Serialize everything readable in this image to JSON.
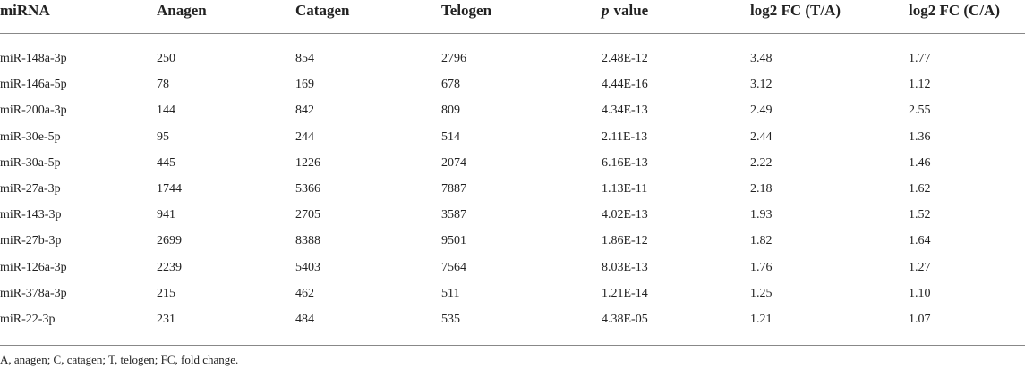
{
  "table": {
    "header": [
      "miRNA",
      "Anagen",
      "Catagen",
      "Telogen",
      [
        "p",
        "value"
      ],
      "log2 FC (T/A)",
      "log2 FC (C/A)"
    ],
    "rows": [
      [
        "miR-148a-3p",
        "250",
        "854",
        "2796",
        "2.48E-12",
        "3.48",
        "1.77"
      ],
      [
        "miR-146a-5p",
        "78",
        "169",
        "678",
        "4.44E-16",
        "3.12",
        "1.12"
      ],
      [
        "miR-200a-3p",
        "144",
        "842",
        "809",
        "4.34E-13",
        "2.49",
        "2.55"
      ],
      [
        "miR-30e-5p",
        "95",
        "244",
        "514",
        "2.11E-13",
        "2.44",
        "1.36"
      ],
      [
        "miR-30a-5p",
        "445",
        "1226",
        "2074",
        "6.16E-13",
        "2.22",
        "1.46"
      ],
      [
        "miR-27a-3p",
        "1744",
        "5366",
        "7887",
        "1.13E-11",
        "2.18",
        "1.62"
      ],
      [
        "miR-143-3p",
        "941",
        "2705",
        "3587",
        "4.02E-13",
        "1.93",
        "1.52"
      ],
      [
        "miR-27b-3p",
        "2699",
        "8388",
        "9501",
        "1.86E-12",
        "1.82",
        "1.64"
      ],
      [
        "miR-126a-3p",
        "2239",
        "5403",
        "7564",
        "8.03E-13",
        "1.76",
        "1.27"
      ],
      [
        "miR-378a-3p",
        "215",
        "462",
        "511",
        "1.21E-14",
        "1.25",
        "1.10"
      ],
      [
        "miR-22-3p",
        "231",
        "484",
        "535",
        "4.38E-05",
        "1.21",
        "1.07"
      ]
    ],
    "footnote": "A, anagen; C, catagen; T, telogen; FC, fold change."
  }
}
